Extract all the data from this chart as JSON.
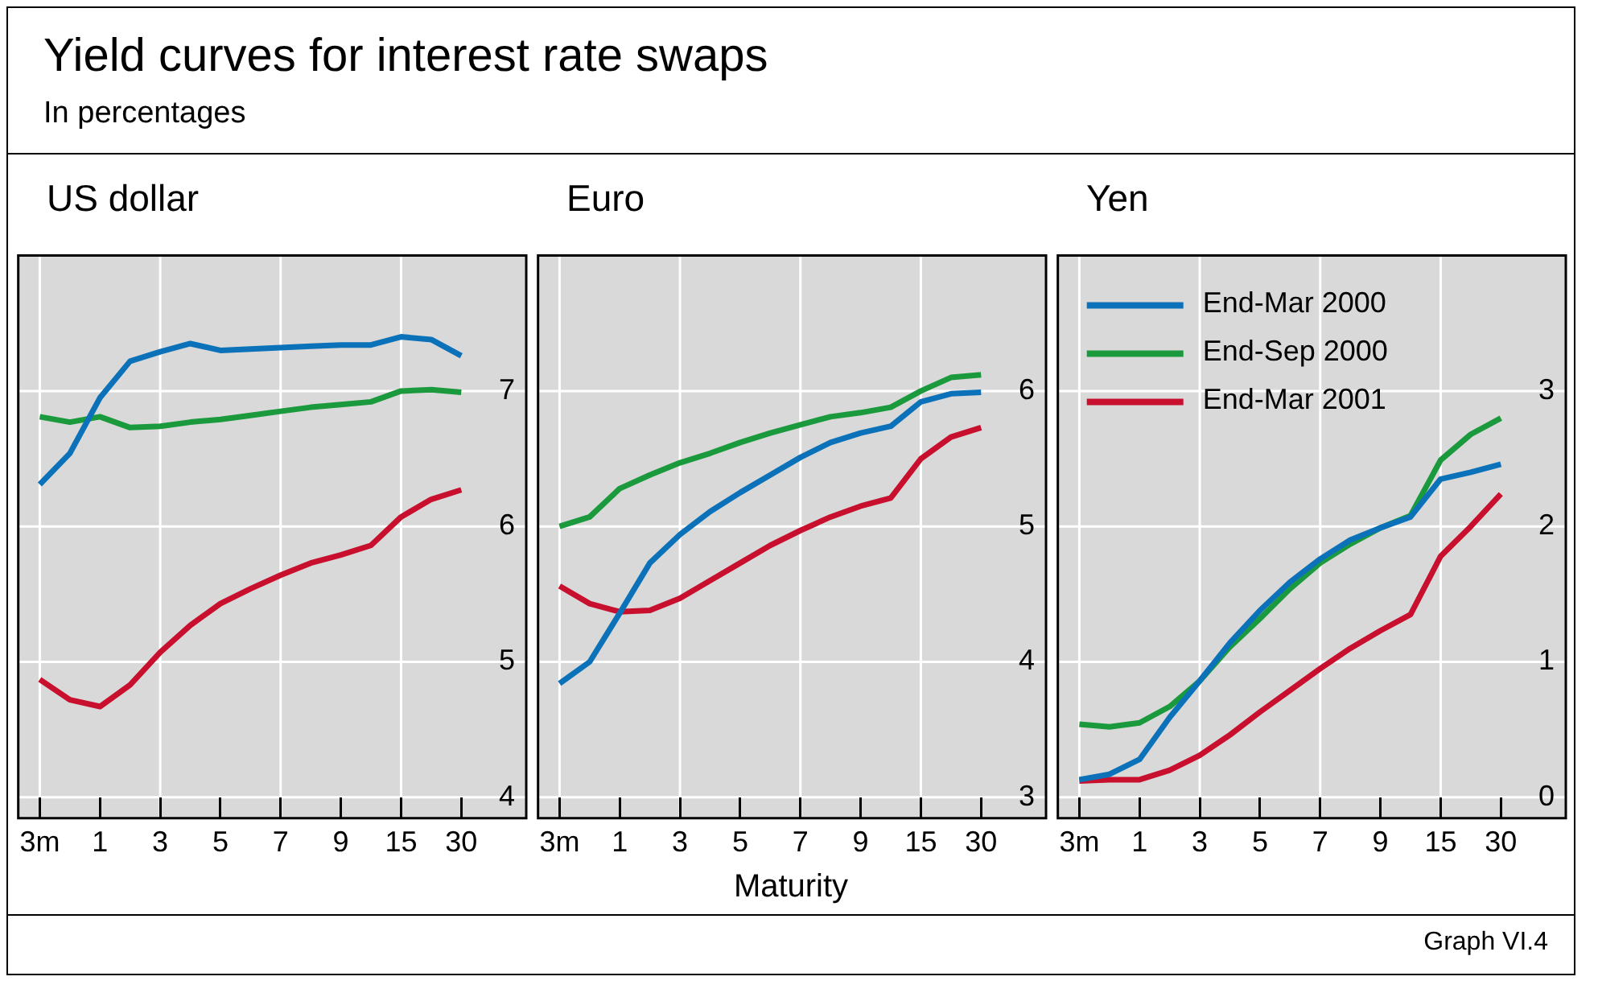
{
  "chart_data": [
    {
      "type": "other",
      "title": "Yield curves for interest rate swaps",
      "subtitle": "In percentages"
    },
    {
      "type": "line",
      "title": "US dollar",
      "categories": [
        "3m",
        null,
        "1",
        null,
        "3",
        null,
        "5",
        null,
        "7",
        null,
        "9",
        null,
        "15",
        null,
        "30"
      ],
      "ylim": [
        4,
        8
      ],
      "yticks": [
        4,
        5,
        6,
        7
      ],
      "grid": true,
      "series": [
        {
          "color": "#0b72b9",
          "values": [
            6.31,
            6.54,
            6.95,
            7.22,
            7.29,
            7.35,
            7.3,
            7.31,
            7.32,
            7.33,
            7.34,
            7.34,
            7.4,
            7.38,
            7.26
          ]
        },
        {
          "color": "#1a9a3c",
          "values": [
            6.81,
            6.77,
            6.81,
            6.73,
            6.74,
            6.77,
            6.79,
            6.82,
            6.85,
            6.88,
            6.9,
            6.92,
            7.0,
            7.01,
            6.99
          ]
        },
        {
          "color": "#c8102e",
          "values": [
            4.87,
            4.72,
            4.67,
            4.83,
            5.07,
            5.27,
            5.43,
            5.54,
            5.64,
            5.73,
            5.79,
            5.86,
            6.07,
            6.2,
            6.27
          ]
        }
      ]
    },
    {
      "type": "line",
      "title": "Euro",
      "xlabel": "Maturity",
      "categories": [
        "3m",
        null,
        "1",
        null,
        "3",
        null,
        "5",
        null,
        "7",
        null,
        "9",
        null,
        "15",
        null,
        "30"
      ],
      "ylim": [
        3,
        7
      ],
      "yticks": [
        3,
        4,
        5,
        6
      ],
      "grid": true,
      "series": [
        {
          "color": "#0b72b9",
          "values": [
            3.84,
            4.0,
            4.36,
            4.73,
            4.94,
            5.11,
            5.25,
            5.38,
            5.51,
            5.62,
            5.69,
            5.74,
            5.92,
            5.98,
            5.99
          ]
        },
        {
          "color": "#1a9a3c",
          "values": [
            5.0,
            5.07,
            5.28,
            5.38,
            5.47,
            5.54,
            5.62,
            5.69,
            5.75,
            5.81,
            5.84,
            5.88,
            6.0,
            6.1,
            6.12
          ]
        },
        {
          "color": "#c8102e",
          "values": [
            4.56,
            4.43,
            4.37,
            4.38,
            4.47,
            4.6,
            4.73,
            4.86,
            4.97,
            5.07,
            5.15,
            5.21,
            5.5,
            5.66,
            5.73
          ]
        }
      ]
    },
    {
      "type": "line",
      "title": "Yen",
      "categories": [
        "3m",
        null,
        "1",
        null,
        "3",
        null,
        "5",
        null,
        "7",
        null,
        "9",
        null,
        "15",
        null,
        "30"
      ],
      "ylim": [
        0,
        4
      ],
      "yticks": [
        0,
        1,
        2,
        3
      ],
      "grid": true,
      "legend": "top left",
      "annotations": [
        "Graph VI.4"
      ],
      "series": [
        {
          "name": "End-Mar 2000",
          "color": "#0b72b9",
          "values": [
            0.13,
            0.17,
            0.28,
            0.59,
            0.86,
            1.14,
            1.38,
            1.59,
            1.76,
            1.9,
            1.99,
            2.07,
            2.35,
            2.4,
            2.46
          ]
        },
        {
          "name": "End-Sep 2000",
          "color": "#1a9a3c",
          "values": [
            0.54,
            0.52,
            0.55,
            0.67,
            0.86,
            1.11,
            1.32,
            1.54,
            1.73,
            1.87,
            1.99,
            2.08,
            2.49,
            2.68,
            2.8
          ]
        },
        {
          "name": "End-Mar 2001",
          "color": "#c8102e",
          "values": [
            0.12,
            0.13,
            0.13,
            0.2,
            0.31,
            0.46,
            0.63,
            0.79,
            0.95,
            1.1,
            1.23,
            1.35,
            1.78,
            2.0,
            2.24
          ]
        }
      ]
    }
  ]
}
